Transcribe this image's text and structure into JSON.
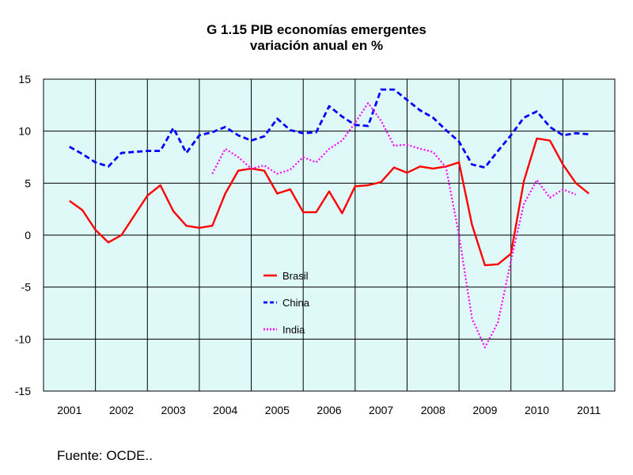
{
  "chart_data": {
    "type": "line",
    "title": "G 1.15 PIB economías emergentes",
    "subtitle": "variación anual en %",
    "ylim": [
      -15,
      15
    ],
    "yticks": [
      15,
      10,
      5,
      0,
      -5,
      -10,
      -15
    ],
    "xlim": [
      2000.5,
      2011.5
    ],
    "xticks": [
      2001,
      2002,
      2003,
      2004,
      2005,
      2006,
      2007,
      2008,
      2009,
      2010,
      2011
    ],
    "grid": true,
    "legend_position": "center-left",
    "plot_background": "#dff9f9",
    "series": [
      {
        "name": "Brasil",
        "color": "#ff0000",
        "style": "solid",
        "x": [
          2001.0,
          2001.25,
          2001.5,
          2001.75,
          2002.0,
          2002.25,
          2002.5,
          2002.75,
          2003.0,
          2003.25,
          2003.5,
          2003.75,
          2004.0,
          2004.25,
          2004.5,
          2004.75,
          2005.0,
          2005.25,
          2005.5,
          2005.75,
          2006.0,
          2006.25,
          2006.5,
          2006.75,
          2007.0,
          2007.25,
          2007.5,
          2007.75,
          2008.0,
          2008.25,
          2008.5,
          2008.75,
          2009.0,
          2009.25,
          2009.5,
          2009.75,
          2010.0,
          2010.25,
          2010.5,
          2010.75,
          2011.0
        ],
        "y": [
          3.3,
          2.4,
          0.5,
          -0.7,
          0.0,
          1.9,
          3.8,
          4.8,
          2.3,
          0.9,
          0.7,
          0.9,
          4.0,
          6.2,
          6.4,
          6.2,
          4.0,
          4.4,
          2.2,
          2.2,
          4.2,
          2.1,
          4.7,
          4.8,
          5.1,
          6.5,
          6.0,
          6.6,
          6.4,
          6.6,
          7.0,
          1.0,
          -2.9,
          -2.8,
          -1.8,
          5.2,
          9.3,
          9.1,
          6.8,
          5.0,
          4.0
        ]
      },
      {
        "name": "China",
        "color": "#0000ff",
        "style": "dashed",
        "x": [
          2001.0,
          2001.25,
          2001.5,
          2001.75,
          2002.0,
          2002.25,
          2002.5,
          2002.75,
          2003.0,
          2003.25,
          2003.5,
          2003.75,
          2004.0,
          2004.25,
          2004.5,
          2004.75,
          2005.0,
          2005.25,
          2005.5,
          2005.75,
          2006.0,
          2006.25,
          2006.5,
          2006.75,
          2007.0,
          2007.25,
          2007.5,
          2007.75,
          2008.0,
          2008.25,
          2008.5,
          2008.75,
          2009.0,
          2009.25,
          2009.5,
          2009.75,
          2010.0,
          2010.25,
          2010.5,
          2010.75,
          2011.0
        ],
        "y": [
          8.5,
          7.8,
          7.0,
          6.6,
          7.9,
          8.0,
          8.1,
          8.1,
          10.3,
          7.9,
          9.6,
          9.9,
          10.4,
          9.6,
          9.1,
          9.5,
          11.2,
          10.1,
          9.8,
          9.9,
          12.4,
          11.4,
          10.6,
          10.5,
          14.0,
          14.0,
          13.0,
          12.0,
          11.3,
          10.1,
          9.0,
          6.8,
          6.5,
          8.1,
          9.6,
          11.3,
          11.9,
          10.4,
          9.6,
          9.8,
          9.7
        ]
      },
      {
        "name": "India",
        "color": "#ff00ff",
        "style": "dotted",
        "x": [
          2003.75,
          2004.0,
          2004.25,
          2004.5,
          2004.75,
          2005.0,
          2005.25,
          2005.5,
          2005.75,
          2006.0,
          2006.25,
          2006.5,
          2006.75,
          2007.0,
          2007.25,
          2007.5,
          2007.75,
          2008.0,
          2008.25,
          2008.5,
          2008.75,
          2009.0,
          2009.25,
          2009.5,
          2009.75,
          2010.0,
          2010.25,
          2010.5,
          2010.75
        ],
        "y": [
          5.9,
          8.3,
          7.5,
          6.4,
          6.7,
          5.9,
          6.3,
          7.5,
          7.0,
          8.3,
          9.1,
          10.8,
          12.7,
          11.0,
          8.6,
          8.7,
          8.3,
          8.0,
          6.5,
          0.0,
          -8.0,
          -10.8,
          -8.4,
          -2.5,
          3.0,
          5.3,
          3.6,
          4.4,
          3.9
        ]
      }
    ]
  },
  "source": "Fuente: OCDE.."
}
